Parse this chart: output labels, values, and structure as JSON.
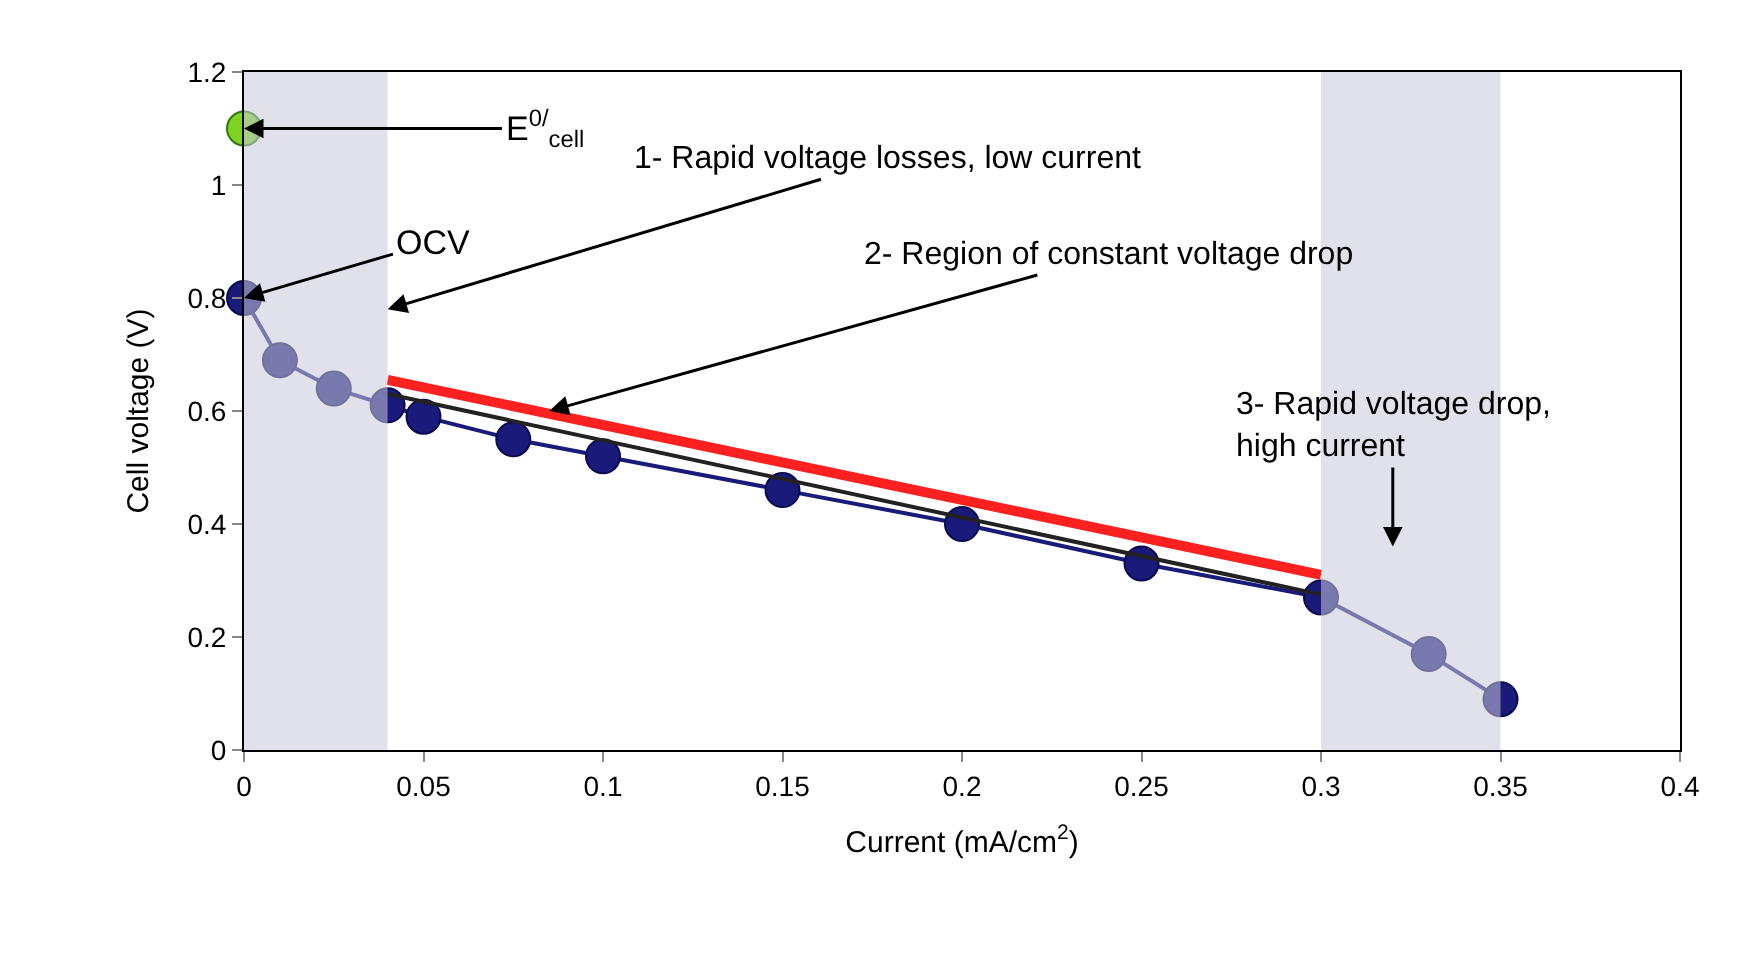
{
  "chart_data": {
    "type": "line",
    "xlabel": "Current (mA/cm$^{2}$)",
    "ylabel": "Cell voltage (V)",
    "series": [
      {
        "color": "#1a1a7a",
        "marker": "circle",
        "x": [
          0,
          0.01,
          0.025,
          0.04,
          0.05,
          0.075,
          0.1,
          0.15,
          0.2,
          0.25,
          0.3,
          0.33,
          0.35
        ],
        "values": [
          0.8,
          0.69,
          0.64,
          0.61,
          0.59,
          0.55,
          0.52,
          0.46,
          0.4,
          0.33,
          0.27,
          0.17,
          0.09
        ]
      },
      {
        "type": "scatter",
        "color": "#7ed321",
        "marker": "circle",
        "x": [
          0
        ],
        "values": [
          1.1
        ]
      },
      {
        "color": "#ff2020",
        "marker": "none",
        "x": [
          0.04,
          0.3
        ],
        "values": [
          0.655,
          0.31
        ]
      },
      {
        "color": "#222222",
        "marker": "none",
        "x": [
          0.04,
          0.3
        ],
        "values": [
          0.63,
          0.275
        ]
      }
    ],
    "bands": [
      {
        "axis": "x",
        "from": 0,
        "to": 0.04,
        "color": "#c8c8dc"
      },
      {
        "axis": "x",
        "from": 0.3,
        "to": 0.35,
        "color": "#c8c8dc"
      }
    ],
    "annotations": [
      {
        "text": "E$^{0/}$$_{cell}$",
        "x": 0,
        "y": 1.1
      },
      {
        "text": "OCV",
        "x": 0,
        "y": 0.8
      },
      {
        "text": "1- Rapid voltage losses, low current",
        "x": 0.04,
        "y": 0.78
      },
      {
        "text": "2- Region of constant voltage drop",
        "x": 0.085,
        "y": 0.6
      },
      "3- Rapid voltage drop,\nhigh current"
    ],
    "xlim": [
      0,
      0.4
    ],
    "xticks": [
      0,
      0.05,
      0.1,
      0.15,
      0.2,
      0.25,
      0.3,
      0.35,
      0.4
    ],
    "ylim": [
      0,
      1.2
    ],
    "yticks": [
      0,
      0.2,
      0.4,
      0.6,
      0.8,
      1,
      1.2
    ]
  }
}
